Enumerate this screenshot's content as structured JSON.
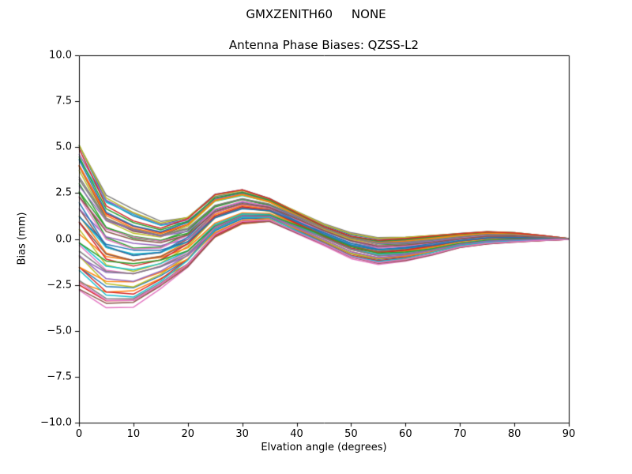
{
  "figure": {
    "suptitle": "GMXZENITH60     NONE"
  },
  "chart_data": {
    "type": "line",
    "suptitle": "GMXZENITH60     NONE",
    "title": "Antenna Phase Biases: QZSS-L2",
    "xlabel": "Elvation angle (degrees)",
    "ylabel": "Bias (mm)",
    "xlim": [
      0,
      90
    ],
    "ylim": [
      -10,
      10
    ],
    "grid": false,
    "legend": "none",
    "xticks": [
      0,
      10,
      20,
      30,
      40,
      50,
      60,
      70,
      80,
      90
    ],
    "xtick_labels": [
      "0",
      "10",
      "20",
      "30",
      "40",
      "50",
      "60",
      "70",
      "80",
      "90"
    ],
    "yticks": [
      10,
      7.5,
      5,
      2.5,
      0,
      -2.5,
      -5,
      -7.5,
      -10
    ],
    "ytick_labels": [
      "10.0",
      "7.5",
      "5.0",
      "2.5",
      "0.0",
      "−2.5",
      "−5.0",
      "−7.5",
      "−10.0"
    ],
    "x": [
      0,
      5,
      10,
      15,
      20,
      25,
      30,
      35,
      40,
      45,
      50,
      55,
      60,
      65,
      70,
      75,
      80,
      85,
      90
    ],
    "envelope_mean": [
      1.1,
      -0.65,
      -1.0,
      -0.85,
      -0.2,
      1.2,
      1.7,
      1.55,
      0.9,
      0.25,
      -0.35,
      -0.65,
      -0.55,
      -0.35,
      -0.1,
      0.05,
      0.08,
      0.05,
      0.0
    ],
    "envelope_halfwidth": [
      4.1,
      2.95,
      2.5,
      1.75,
      1.4,
      1.2,
      0.95,
      0.65,
      0.6,
      0.55,
      0.65,
      0.7,
      0.65,
      0.55,
      0.4,
      0.35,
      0.27,
      0.15,
      0.02
    ],
    "crossing_basis": [
      1.2,
      -0.8,
      -1.2,
      -0.6,
      0.4,
      0.9,
      0.8,
      0.4,
      0.0,
      -0.3,
      -0.4,
      -0.2,
      0.0,
      0.15,
      0.2,
      0.15,
      0.1,
      0.05,
      0.0
    ],
    "palette": [
      "#1f77b4",
      "#ff7f0e",
      "#2ca02c",
      "#d62728",
      "#9467bd",
      "#8c564b",
      "#e377c2",
      "#7f7f7f",
      "#bcbd22",
      "#17becf"
    ],
    "axes_color": "#000000",
    "line_width": 1.5,
    "series": [
      {
        "a": 0.95,
        "b": 0.1
      },
      {
        "a": -0.8,
        "b": -0.15
      },
      {
        "a": 0.3,
        "b": 0.2
      },
      {
        "a": 0.7,
        "b": 0.05
      },
      {
        "a": -0.45,
        "b": -0.2
      },
      {
        "a": 0.1,
        "b": 0.12
      },
      {
        "a": -1.0,
        "b": 0.18
      },
      {
        "a": 0.55,
        "b": -0.08
      },
      {
        "a": -0.2,
        "b": 0.22
      },
      {
        "a": 0.85,
        "b": -0.18
      },
      {
        "a": -0.65,
        "b": 0.03
      },
      {
        "a": 0.0,
        "b": 0.15
      },
      {
        "a": 0.4,
        "b": -0.12
      },
      {
        "a": -0.9,
        "b": 0.08
      },
      {
        "a": 0.2,
        "b": -0.22
      },
      {
        "a": 0.65,
        "b": 0.17
      },
      {
        "a": -0.35,
        "b": 0.02
      },
      {
        "a": 1.0,
        "b": -0.1
      },
      {
        "a": -0.55,
        "b": 0.2
      },
      {
        "a": 0.05,
        "b": -0.05
      },
      {
        "a": 0.75,
        "b": 0.13
      },
      {
        "a": -0.15,
        "b": -0.17
      },
      {
        "a": 0.45,
        "b": 0.07
      },
      {
        "a": -0.7,
        "b": 0.21
      },
      {
        "a": 0.9,
        "b": -0.13
      },
      {
        "a": -0.05,
        "b": 0.04
      },
      {
        "a": 0.35,
        "b": -0.19
      },
      {
        "a": -0.85,
        "b": 0.11
      },
      {
        "a": 0.6,
        "b": 0.16
      },
      {
        "a": -0.3,
        "b": -0.06
      },
      {
        "a": 0.15,
        "b": 0.23
      },
      {
        "a": -0.6,
        "b": -0.14
      },
      {
        "a": 0.8,
        "b": 0.09
      },
      {
        "a": -0.1,
        "b": 0.19
      },
      {
        "a": 0.5,
        "b": -0.21
      },
      {
        "a": -0.95,
        "b": 0.06
      },
      {
        "a": 0.25,
        "b": 0.14
      },
      {
        "a": -0.4,
        "b": -0.09
      },
      {
        "a": 0.98,
        "b": 0.01
      },
      {
        "a": -0.75,
        "b": 0.24
      },
      {
        "a": 0.08,
        "b": -0.16
      },
      {
        "a": 0.68,
        "b": 0.1
      },
      {
        "a": -0.25,
        "b": -0.23
      },
      {
        "a": 0.88,
        "b": 0.18
      },
      {
        "a": -0.5,
        "b": 0.05
      },
      {
        "a": 0.33,
        "b": -0.11
      },
      {
        "a": -0.88,
        "b": 0.12
      },
      {
        "a": 0.58,
        "b": -0.07
      }
    ]
  }
}
